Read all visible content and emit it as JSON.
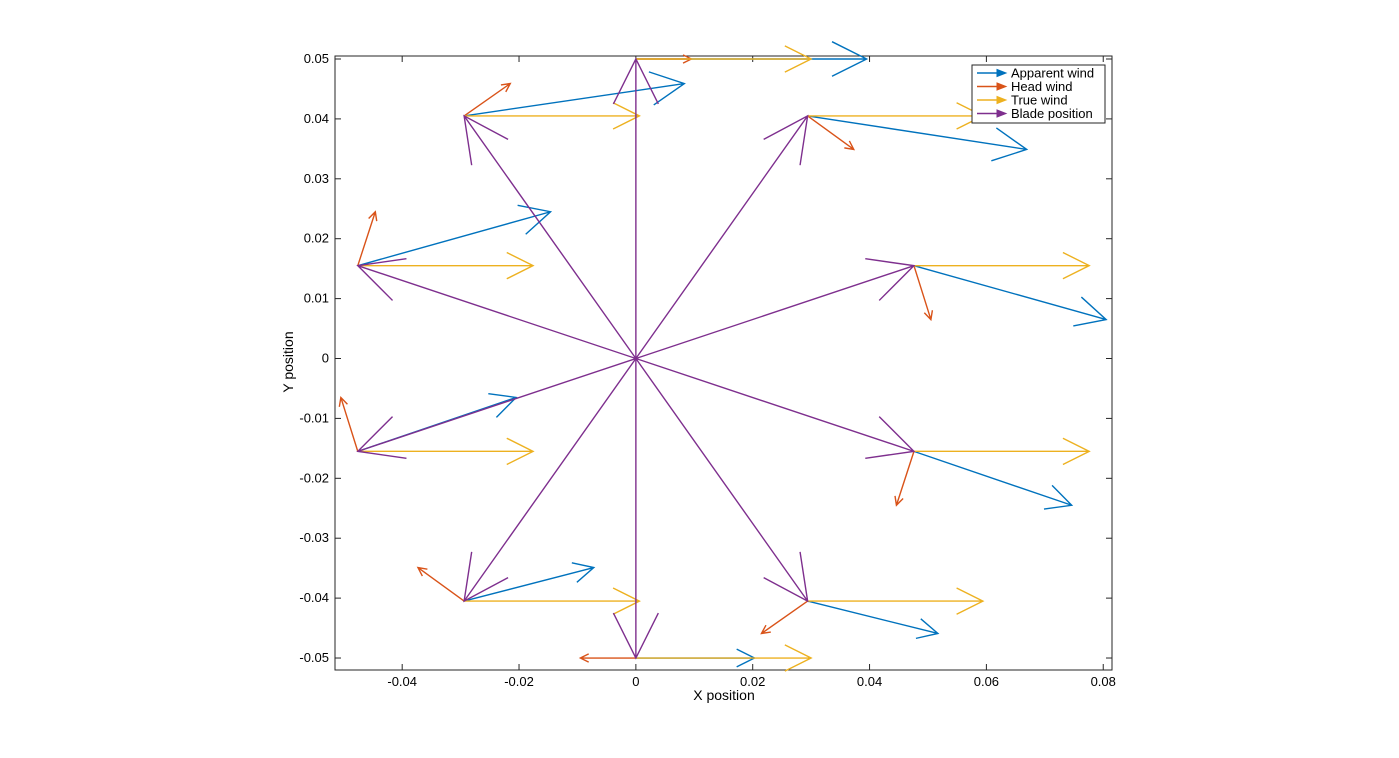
{
  "chart_data": {
    "type": "quiver",
    "title": "",
    "xlabel": "X position",
    "ylabel": "Y position",
    "xlim": [
      -0.0515,
      0.0815
    ],
    "ylim": [
      -0.052,
      0.0505
    ],
    "xticks": [
      -0.04,
      -0.02,
      0,
      0.02,
      0.04,
      0.06,
      0.08
    ],
    "xtick_labels": [
      "-0.04",
      "-0.02",
      "0",
      "0.02",
      "0.04",
      "0.06",
      "0.08"
    ],
    "yticks": [
      -0.05,
      -0.04,
      -0.03,
      -0.02,
      -0.01,
      0,
      0.01,
      0.02,
      0.03,
      0.04,
      0.05
    ],
    "ytick_labels": [
      "-0.05",
      "-0.04",
      "-0.03",
      "-0.02",
      "-0.01",
      "0",
      "0.01",
      "0.02",
      "0.03",
      "0.04",
      "0.05"
    ],
    "legend_position": "top-right",
    "series": [
      {
        "name": "Apparent wind",
        "color": "#0072BD",
        "vectors": [
          {
            "x0": 0,
            "y0": 0.05,
            "x1": 0.0395,
            "y1": 0.05
          },
          {
            "x0": -0.0294,
            "y0": 0.0405,
            "x1": 0.0083,
            "y1": 0.0459
          },
          {
            "x0": 0.0294,
            "y0": 0.0405,
            "x1": 0.0669,
            "y1": 0.0349
          },
          {
            "x0": -0.0476,
            "y0": 0.0155,
            "x1": -0.0146,
            "y1": 0.0245
          },
          {
            "x0": 0.0476,
            "y0": 0.0155,
            "x1": 0.0805,
            "y1": 0.0065
          },
          {
            "x0": -0.0476,
            "y0": -0.0155,
            "x1": -0.0205,
            "y1": -0.0065
          },
          {
            "x0": 0.0476,
            "y0": -0.0155,
            "x1": 0.0746,
            "y1": -0.0245
          },
          {
            "x0": -0.0294,
            "y0": -0.0405,
            "x1": -0.0072,
            "y1": -0.0349
          },
          {
            "x0": 0.0294,
            "y0": -0.0405,
            "x1": 0.0517,
            "y1": -0.0459
          },
          {
            "x0": 0,
            "y0": -0.05,
            "x1": 0.0203,
            "y1": -0.05
          }
        ]
      },
      {
        "name": "Head wind",
        "color": "#D95319",
        "vectors": [
          {
            "x0": 0,
            "y0": 0.05,
            "x1": 0.0095,
            "y1": 0.05
          },
          {
            "x0": -0.0294,
            "y0": 0.0405,
            "x1": -0.0215,
            "y1": 0.0459
          },
          {
            "x0": 0.0294,
            "y0": 0.0405,
            "x1": 0.0373,
            "y1": 0.0349
          },
          {
            "x0": -0.0476,
            "y0": 0.0155,
            "x1": -0.0446,
            "y1": 0.0245
          },
          {
            "x0": 0.0476,
            "y0": 0.0155,
            "x1": 0.0505,
            "y1": 0.0065
          },
          {
            "x0": -0.0476,
            "y0": -0.0155,
            "x1": -0.0505,
            "y1": -0.0065
          },
          {
            "x0": 0.0476,
            "y0": -0.0155,
            "x1": 0.0446,
            "y1": -0.0245
          },
          {
            "x0": -0.0294,
            "y0": -0.0405,
            "x1": -0.0373,
            "y1": -0.0349
          },
          {
            "x0": 0.0294,
            "y0": -0.0405,
            "x1": 0.0215,
            "y1": -0.0459
          },
          {
            "x0": 0,
            "y0": -0.05,
            "x1": -0.0095,
            "y1": -0.05
          }
        ]
      },
      {
        "name": "True wind",
        "color": "#EDB120",
        "vectors": [
          {
            "x0": 0,
            "y0": 0.05,
            "x1": 0.03,
            "y1": 0.05
          },
          {
            "x0": -0.0294,
            "y0": 0.0405,
            "x1": 0.0006,
            "y1": 0.0405
          },
          {
            "x0": 0.0294,
            "y0": 0.0405,
            "x1": 0.0594,
            "y1": 0.0405
          },
          {
            "x0": -0.0476,
            "y0": 0.0155,
            "x1": -0.0176,
            "y1": 0.0155
          },
          {
            "x0": 0.0476,
            "y0": 0.0155,
            "x1": 0.0776,
            "y1": 0.0155
          },
          {
            "x0": -0.0476,
            "y0": -0.0155,
            "x1": -0.0176,
            "y1": -0.0155
          },
          {
            "x0": 0.0476,
            "y0": -0.0155,
            "x1": 0.0776,
            "y1": -0.0155
          },
          {
            "x0": -0.0294,
            "y0": -0.0405,
            "x1": 0.0006,
            "y1": -0.0405
          },
          {
            "x0": 0.0294,
            "y0": -0.0405,
            "x1": 0.0594,
            "y1": -0.0405
          },
          {
            "x0": 0,
            "y0": -0.05,
            "x1": 0.03,
            "y1": -0.05
          }
        ]
      },
      {
        "name": "Blade position",
        "color": "#7E2F8E",
        "vectors": [
          {
            "x0": 0,
            "y0": 0,
            "x1": 0,
            "y1": 0.05
          },
          {
            "x0": 0,
            "y0": 0,
            "x1": -0.0294,
            "y1": 0.0405
          },
          {
            "x0": 0,
            "y0": 0,
            "x1": 0.0294,
            "y1": 0.0405
          },
          {
            "x0": 0,
            "y0": 0,
            "x1": -0.0476,
            "y1": 0.0155
          },
          {
            "x0": 0,
            "y0": 0,
            "x1": 0.0476,
            "y1": 0.0155
          },
          {
            "x0": 0,
            "y0": 0,
            "x1": -0.0476,
            "y1": -0.0155
          },
          {
            "x0": 0,
            "y0": 0,
            "x1": 0.0476,
            "y1": -0.0155
          },
          {
            "x0": 0,
            "y0": 0,
            "x1": -0.0294,
            "y1": -0.0405
          },
          {
            "x0": 0,
            "y0": 0,
            "x1": 0.0294,
            "y1": -0.0405
          },
          {
            "x0": 0,
            "y0": 0,
            "x1": 0,
            "y1": -0.05
          }
        ]
      }
    ]
  }
}
